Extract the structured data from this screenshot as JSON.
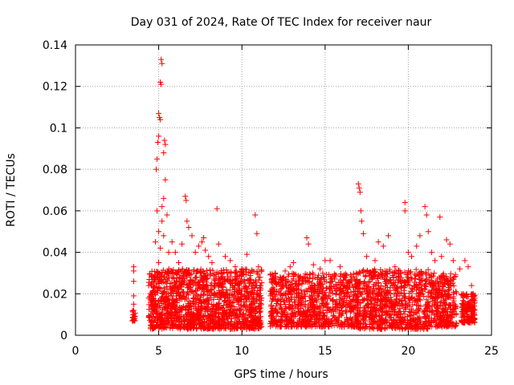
{
  "chart_data": {
    "type": "scatter",
    "title": "Day 031 of 2024, Rate Of TEC Index for receiver naur",
    "xlabel": "GPS time / hours",
    "ylabel": "ROTI / TECUs",
    "xlim": [
      0,
      25
    ],
    "ylim": [
      0,
      0.14
    ],
    "x_ticks": [
      0,
      5,
      10,
      15,
      20,
      25
    ],
    "x_tick_labels": [
      "0",
      "5",
      "10",
      "15",
      "20",
      "25"
    ],
    "y_ticks": [
      0,
      0.02,
      0.04,
      0.06,
      0.08,
      0.1,
      0.12,
      0.14
    ],
    "y_tick_labels": [
      "0",
      "0.02",
      "0.04",
      "0.06",
      "0.08",
      "0.1",
      "0.12",
      "0.14"
    ],
    "grid": true,
    "marker": "+",
    "color": "#ff0000",
    "series": [
      {
        "points": [
          [
            3.5,
            0.033
          ],
          [
            3.5,
            0.031
          ],
          [
            3.5,
            0.026
          ],
          [
            3.5,
            0.019
          ],
          [
            3.5,
            0.015
          ],
          [
            3.5,
            0.012
          ],
          [
            3.5,
            0.01
          ],
          [
            3.55,
            0.009
          ],
          [
            4.4,
            0.024
          ],
          [
            4.5,
            0.02
          ],
          [
            4.6,
            0.018
          ],
          [
            4.7,
            0.028
          ],
          [
            4.8,
            0.045
          ],
          [
            4.9,
            0.06
          ],
          [
            4.85,
            0.08
          ],
          [
            4.9,
            0.085
          ],
          [
            4.95,
            0.093
          ],
          [
            5.0,
            0.096
          ],
          [
            5.0,
            0.107
          ],
          [
            5.05,
            0.105
          ],
          [
            5.1,
            0.104
          ],
          [
            5.1,
            0.122
          ],
          [
            5.15,
            0.121
          ],
          [
            5.15,
            0.133
          ],
          [
            5.2,
            0.131
          ],
          [
            5.3,
            0.088
          ],
          [
            5.35,
            0.094
          ],
          [
            5.4,
            0.092
          ],
          [
            5.4,
            0.075
          ],
          [
            5.3,
            0.066
          ],
          [
            5.2,
            0.062
          ],
          [
            5.5,
            0.058
          ],
          [
            5.2,
            0.055
          ],
          [
            5.0,
            0.05
          ],
          [
            5.3,
            0.048
          ],
          [
            5.1,
            0.042
          ],
          [
            5.6,
            0.04
          ],
          [
            5.0,
            0.035
          ],
          [
            5.2,
            0.03
          ],
          [
            5.5,
            0.027
          ],
          [
            5.8,
            0.045
          ],
          [
            6.0,
            0.04
          ],
          [
            6.2,
            0.035
          ],
          [
            6.4,
            0.044
          ],
          [
            6.6,
            0.067
          ],
          [
            6.65,
            0.065
          ],
          [
            6.7,
            0.055
          ],
          [
            6.8,
            0.052
          ],
          [
            7.0,
            0.048
          ],
          [
            7.2,
            0.04
          ],
          [
            7.4,
            0.043
          ],
          [
            7.6,
            0.045
          ],
          [
            7.7,
            0.047
          ],
          [
            7.8,
            0.041
          ],
          [
            8.0,
            0.038
          ],
          [
            8.2,
            0.035
          ],
          [
            8.5,
            0.061
          ],
          [
            8.6,
            0.044
          ],
          [
            9.0,
            0.038
          ],
          [
            9.3,
            0.036
          ],
          [
            9.6,
            0.033
          ],
          [
            10.0,
            0.032
          ],
          [
            10.3,
            0.039
          ],
          [
            10.5,
            0.03
          ],
          [
            10.8,
            0.058
          ],
          [
            10.9,
            0.049
          ],
          [
            11.0,
            0.033
          ],
          [
            11.1,
            0.028
          ],
          [
            12.0,
            0.03
          ],
          [
            12.3,
            0.028
          ],
          [
            12.6,
            0.031
          ],
          [
            12.9,
            0.033
          ],
          [
            13.1,
            0.035
          ],
          [
            13.5,
            0.027
          ],
          [
            13.9,
            0.047
          ],
          [
            14.0,
            0.044
          ],
          [
            14.3,
            0.034
          ],
          [
            14.7,
            0.032
          ],
          [
            15.0,
            0.036
          ],
          [
            15.3,
            0.036
          ],
          [
            15.6,
            0.029
          ],
          [
            15.9,
            0.033
          ],
          [
            16.3,
            0.029
          ],
          [
            16.7,
            0.028
          ],
          [
            17.0,
            0.073
          ],
          [
            17.05,
            0.071
          ],
          [
            17.1,
            0.069
          ],
          [
            17.15,
            0.06
          ],
          [
            17.2,
            0.055
          ],
          [
            17.3,
            0.049
          ],
          [
            17.5,
            0.038
          ],
          [
            17.8,
            0.03
          ],
          [
            18.0,
            0.036
          ],
          [
            18.2,
            0.045
          ],
          [
            18.5,
            0.043
          ],
          [
            18.8,
            0.048
          ],
          [
            19.2,
            0.033
          ],
          [
            19.5,
            0.031
          ],
          [
            19.8,
            0.064
          ],
          [
            19.8,
            0.06
          ],
          [
            20.0,
            0.04
          ],
          [
            20.2,
            0.038
          ],
          [
            20.5,
            0.043
          ],
          [
            20.7,
            0.048
          ],
          [
            21.0,
            0.062
          ],
          [
            21.1,
            0.058
          ],
          [
            21.2,
            0.05
          ],
          [
            21.4,
            0.04
          ],
          [
            21.6,
            0.036
          ],
          [
            21.9,
            0.057
          ],
          [
            22.0,
            0.038
          ],
          [
            22.3,
            0.046
          ],
          [
            22.5,
            0.044
          ],
          [
            22.7,
            0.036
          ],
          [
            23.1,
            0.032
          ],
          [
            23.4,
            0.036
          ],
          [
            23.6,
            0.033
          ],
          [
            23.8,
            0.024
          ],
          [
            23.9,
            0.02
          ]
        ]
      }
    ],
    "dense_clusters": [
      {
        "x_range": [
          3.4,
          3.6
        ],
        "y_range": [
          0.007,
          0.012
        ],
        "count": 18
      },
      {
        "x_range": [
          4.4,
          11.2
        ],
        "y_range": [
          0.003,
          0.032
        ],
        "count": 1500
      },
      {
        "x_range": [
          11.7,
          17.0
        ],
        "y_range": [
          0.004,
          0.03
        ],
        "count": 900
      },
      {
        "x_range": [
          16.9,
          21.2
        ],
        "y_range": [
          0.003,
          0.032
        ],
        "count": 800
      },
      {
        "x_range": [
          21.2,
          22.9
        ],
        "y_range": [
          0.004,
          0.03
        ],
        "count": 320
      },
      {
        "x_range": [
          23.2,
          24.0
        ],
        "y_range": [
          0.006,
          0.02
        ],
        "count": 170
      }
    ]
  }
}
